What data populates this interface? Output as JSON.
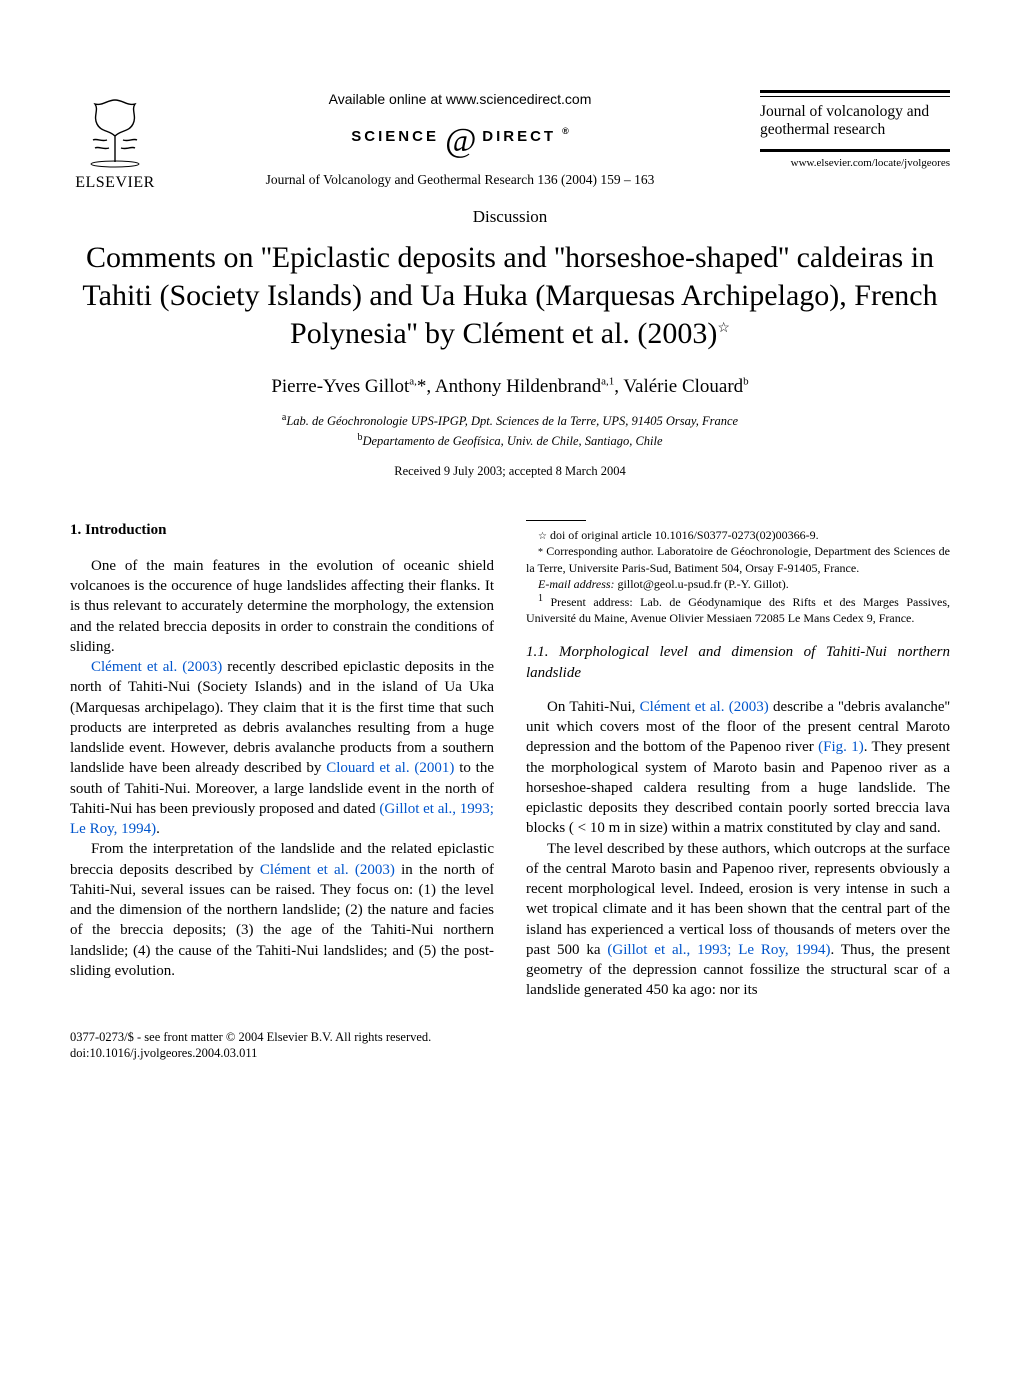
{
  "header": {
    "publisher_name": "ELSEVIER",
    "available_online": "Available online at www.sciencedirect.com",
    "sd_left": "SCIENCE",
    "sd_right": "DIRECT",
    "sd_sup": "®",
    "journal_ref": "Journal of Volcanology and Geothermal Research 136 (2004) 159 – 163",
    "journal_title": "Journal of volcanology and geothermal research",
    "journal_url": "www.elsevier.com/locate/jvolgeores"
  },
  "article": {
    "type": "Discussion",
    "title": "Comments on ''Epiclastic deposits and ''horseshoe-shaped'' caldeiras in Tahiti (Society Islands) and Ua Huka (Marquesas Archipelago), French Polynesia'' by Clément et al. (2003)",
    "title_star": "☆",
    "authors_html": "Pierre-Yves Gillot<sup>a,</sup>*, Anthony Hildenbrand<sup>a,1</sup>, Valérie Clouard<sup>b</sup>",
    "affil_a": "Lab. de Géochronologie UPS-IPGP, Dpt. Sciences de la Terre, UPS, 91405 Orsay, France",
    "affil_b": "Departamento de Geofísica, Univ. de Chile, Santiago, Chile",
    "dates": "Received 9 July 2003; accepted 8 March 2004"
  },
  "body": {
    "h1": "1. Introduction",
    "p1a": "One of the main features in the evolution of oceanic shield volcanoes is the occurence of huge landslides affecting their flanks. It is thus relevant to accurately determine the morphology, the extension and the related breccia deposits in order to constrain the conditions of sliding.",
    "p1b_ref1": "Clément et al. (2003)",
    "p1b_after": " recently described epiclastic deposits in the north of Tahiti-Nui (Society Islands) and in the island of Ua Uka (Marquesas archipelago). They claim that it is the first time that such products are interpreted as debris avalanches resulting from a huge landslide event. However, debris avalanche products from a southern landslide have been already described by ",
    "p1b_ref2": "Clouard et al. (2001)",
    "p1b_after2": " to the south of Tahiti-Nui. Moreover, a large landslide event in the north of Tahiti-Nui has been previously proposed and dated ",
    "p1b_ref3": "(Gillot et al., 1993; Le Roy, 1994)",
    "p1b_after3": ".",
    "p1c_before": "From the interpretation of the landslide and the related epiclastic breccia deposits described by ",
    "p1c_ref": "Clément et al. (2003)",
    "p1c_after": " in the north of Tahiti-Nui, several issues can be raised. They focus on: (1) the level and the dimension of the northern landslide; (2) the nature and facies of the breccia deposits; (3) the age of the Tahiti-Nui northern landslide; (4) the cause of the Tahiti-Nui landslides; and (5) the post-sliding evolution.",
    "h11": "1.1. Morphological level and dimension of Tahiti-Nui northern landslide",
    "p11a_before": "On Tahiti-Nui, ",
    "p11a_ref1": "Clément et al. (2003)",
    "p11a_mid": " describe a ''debris avalanche'' unit which covers most of the floor of the present central Maroto depression and the bottom of the Papenoo river ",
    "p11a_ref2": "(Fig. 1)",
    "p11a_after": ". They present the morphological system of Maroto basin and Papenoo river as a horseshoe-shaped caldera resulting from a huge landslide. The epiclastic deposits they described contain poorly sorted breccia lava blocks ( < 10 m in size) within a matrix constituted by clay and sand.",
    "p11b_before": "The level described by these authors, which outcrops at the surface of the central Maroto basin and Papenoo river, represents obviously a recent morphological level. Indeed, erosion is very intense in such a wet tropical climate and it has been shown that the central part of the island has experienced a vertical loss of thousands of meters over the past 500 ka ",
    "p11b_ref": "(Gillot et al., 1993; Le Roy, 1994)",
    "p11b_after": ". Thus, the present geometry of the depression cannot fossilize the structural scar of a landslide generated 450 ka ago: nor its"
  },
  "footnotes": {
    "star": "☆",
    "doi_line": " doi of original article 10.1016/S0377-0273(02)00366-9.",
    "corr_label": "*",
    "corr": " Corresponding author. Laboratoire de Géochronologie, Department des Sciences de la Terre, Universite Paris-Sud, Batiment 504, Orsay F-91405, France.",
    "email_label": "E-mail address:",
    "email": " gillot@geol.u-psud.fr (P.-Y. Gillot).",
    "addr1_label": "1",
    "addr1": " Present address: Lab. de Géodynamique des Rifts et des Marges Passives, Université du Maine, Avenue Olivier Messiaen 72085 Le Mans Cedex 9, France."
  },
  "bottom": {
    "copyright": "0377-0273/$ - see front matter © 2004 Elsevier B.V. All rights reserved.",
    "doi": "doi:10.1016/j.jvolgeores.2004.03.011"
  },
  "colors": {
    "text": "#000000",
    "link": "#0055cc",
    "background": "#ffffff"
  },
  "typography": {
    "body_font": "Times New Roman",
    "body_size_pt": 11,
    "title_size_pt": 22,
    "authors_size_pt": 14
  }
}
